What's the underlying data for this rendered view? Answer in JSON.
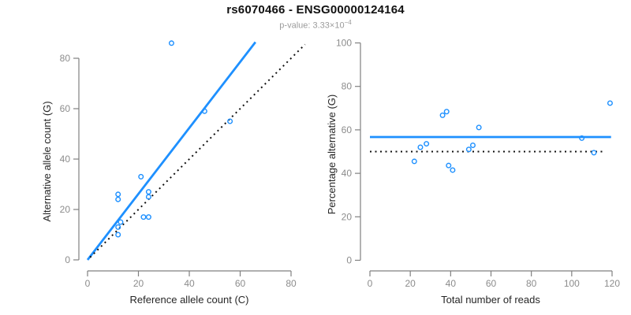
{
  "header": {
    "title": "rs6070466 - ENSG00000124164",
    "pvalue_label": "p-value: ",
    "pvalue_base": "3.33×10",
    "pvalue_exponent": "−4"
  },
  "colors": {
    "accent": "#1E90FF",
    "dotted_line": "#111111",
    "axis": "#808080",
    "tick_text": "#8c8c8c",
    "axis_title_text": "#262626",
    "title_text": "#111111",
    "subtitle_text": "#9b9b9b",
    "background": "#ffffff"
  },
  "chart_data": [
    {
      "type": "scatter",
      "title": "",
      "xlabel": "Reference allele count (C)",
      "ylabel": "Alternative allele count (G)",
      "xlim": [
        0,
        80
      ],
      "ylim": [
        0,
        80
      ],
      "xticks": [
        0,
        20,
        40,
        60,
        80
      ],
      "yticks": [
        0,
        20,
        40,
        60,
        80
      ],
      "grid": false,
      "legend": null,
      "points": [
        [
          12,
          10
        ],
        [
          12,
          13
        ],
        [
          12,
          24
        ],
        [
          12,
          26
        ],
        [
          13,
          15
        ],
        [
          21,
          33
        ],
        [
          22,
          17
        ],
        [
          24,
          17
        ],
        [
          24,
          25
        ],
        [
          24,
          27
        ],
        [
          33,
          86
        ],
        [
          46,
          59
        ],
        [
          56,
          55
        ]
      ],
      "lines": [
        {
          "name": "fit-line",
          "style": "solid",
          "color": "#1E90FF",
          "x": [
            0,
            66
          ],
          "y": [
            0,
            86.4
          ]
        },
        {
          "name": "identity-line",
          "style": "dotted",
          "color": "#111111",
          "x": [
            1,
            85.5
          ],
          "y": [
            1,
            85.5
          ]
        }
      ]
    },
    {
      "type": "scatter",
      "title": "",
      "xlabel": "Total number of reads",
      "ylabel": "Percentage alternative (G)",
      "xlim": [
        0,
        120
      ],
      "ylim": [
        0,
        100
      ],
      "xticks": [
        0,
        20,
        40,
        60,
        80,
        100,
        120
      ],
      "yticks": [
        0,
        20,
        40,
        60,
        80,
        100
      ],
      "grid": false,
      "legend": null,
      "points": [
        [
          22,
          45.5
        ],
        [
          25,
          52.0
        ],
        [
          28,
          53.6
        ],
        [
          36,
          66.7
        ],
        [
          38,
          68.4
        ],
        [
          39,
          43.6
        ],
        [
          41,
          41.5
        ],
        [
          49,
          51.0
        ],
        [
          51,
          52.9
        ],
        [
          54,
          61.1
        ],
        [
          105,
          56.2
        ],
        [
          111,
          49.5
        ],
        [
          119,
          72.3
        ]
      ],
      "lines": [
        {
          "name": "mean-line",
          "style": "solid",
          "color": "#1E90FF",
          "x": [
            0,
            119.5
          ],
          "y": [
            56.7,
            56.7
          ]
        },
        {
          "name": "null-line",
          "style": "dotted",
          "color": "#111111",
          "x": [
            0,
            116.5
          ],
          "y": [
            50,
            50
          ]
        }
      ]
    }
  ]
}
